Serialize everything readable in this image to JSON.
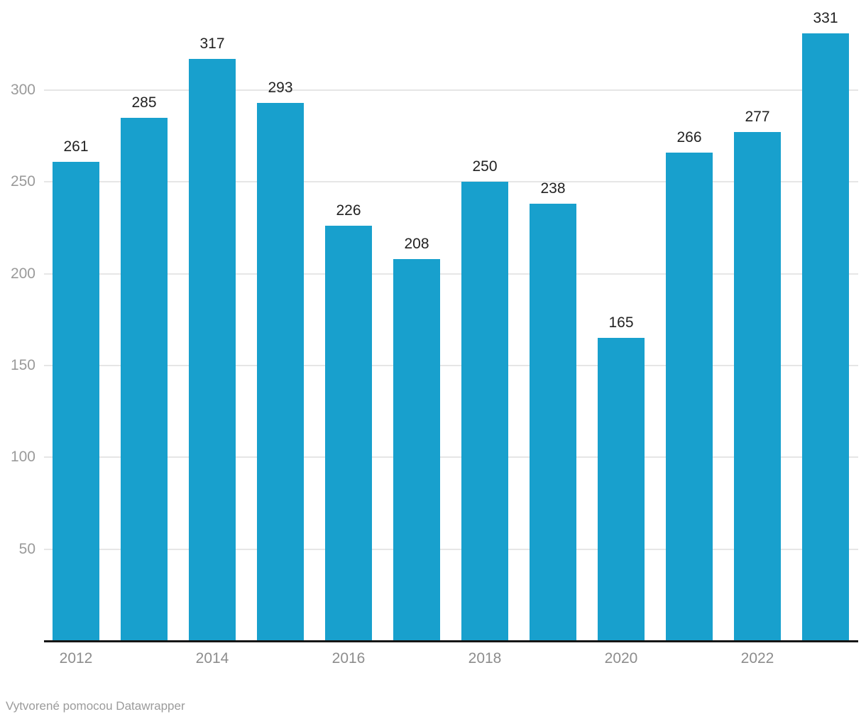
{
  "chart_data": {
    "type": "bar",
    "categories": [
      "2012",
      "2013",
      "2014",
      "2015",
      "2016",
      "2017",
      "2018",
      "2019",
      "2020",
      "2021",
      "2022",
      "2023"
    ],
    "values": [
      261,
      285,
      317,
      293,
      226,
      208,
      250,
      238,
      165,
      266,
      277,
      331
    ],
    "title": "",
    "xlabel": "",
    "ylabel": "",
    "ylim": [
      0,
      350
    ],
    "y_ticks": [
      50,
      100,
      150,
      200,
      250,
      300
    ],
    "x_tick_labels": [
      "2012",
      "2014",
      "2016",
      "2018",
      "2020",
      "2022"
    ],
    "grid": true,
    "legend": "none",
    "value_labels_shown": true
  },
  "colors": {
    "bar": "#18a0cd",
    "gridline": "#e6e6e6",
    "axis_line": "#161616",
    "value_label": "#222222",
    "axis_tick_label": "#9a9a9a",
    "x_tick_label": "#8d8d8d",
    "footer_text": "#9b9b9b",
    "background": "#ffffff"
  },
  "footer": {
    "attribution": "Vytvorené pomocou Datawrapper"
  }
}
